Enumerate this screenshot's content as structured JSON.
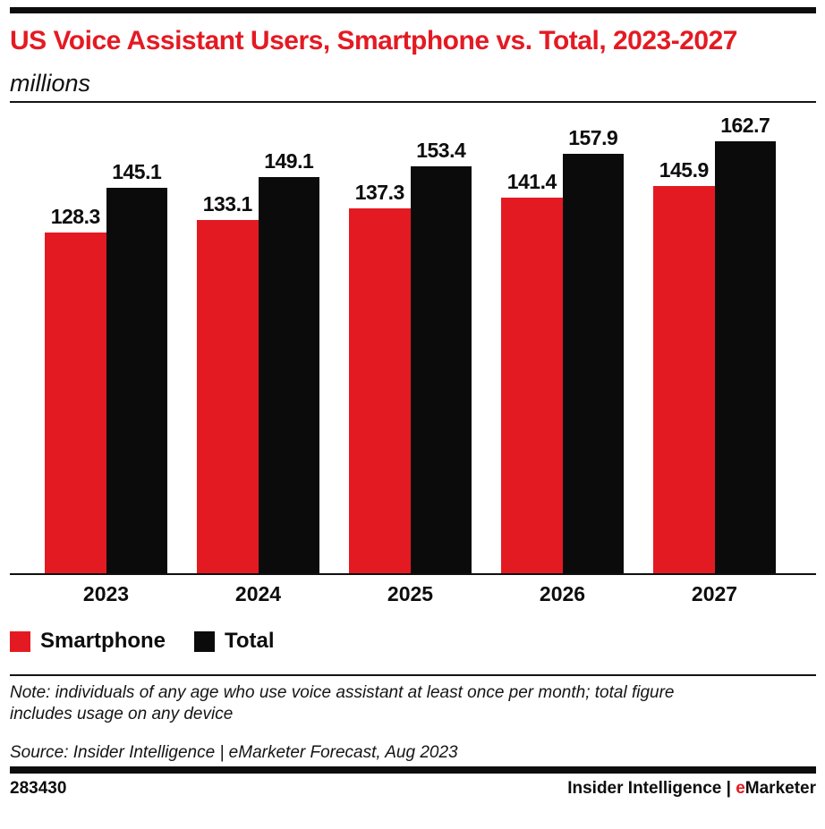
{
  "header": {
    "title": "US Voice Assistant Users, Smartphone vs. Total, 2023-2027",
    "subtitle": "millions"
  },
  "chart_data": {
    "type": "bar",
    "categories": [
      "2023",
      "2024",
      "2025",
      "2026",
      "2027"
    ],
    "series": [
      {
        "name": "Smartphone",
        "color": "#e41a23",
        "values": [
          128.3,
          133.1,
          137.3,
          141.4,
          145.9
        ]
      },
      {
        "name": "Total",
        "color": "#0b0b0b",
        "values": [
          145.1,
          149.1,
          153.4,
          157.9,
          162.7
        ]
      }
    ],
    "title": "US Voice Assistant Users, Smartphone vs. Total, 2023-2027",
    "xlabel": "",
    "ylabel": "millions",
    "ylim": [
      0,
      162.7
    ],
    "grid": false,
    "legend_position": "bottom-left",
    "value_labels": true,
    "value_label_decimals": 1
  },
  "legend": {
    "items": [
      {
        "label": "Smartphone",
        "color": "#e41a23"
      },
      {
        "label": "Total",
        "color": "#0b0b0b"
      }
    ]
  },
  "footnote": {
    "note": "Note: individuals of any age who use voice assistant at least once per month; total figure includes usage on any device",
    "source": "Source: Insider Intelligence | eMarketer Forecast, Aug 2023"
  },
  "footer": {
    "chart_id": "283430",
    "brand_prefix": "Insider Intelligence | ",
    "brand_e": "e",
    "brand_rest": "Marketer"
  },
  "colors": {
    "accent_red": "#e41a23",
    "bar_black": "#0b0b0b"
  }
}
